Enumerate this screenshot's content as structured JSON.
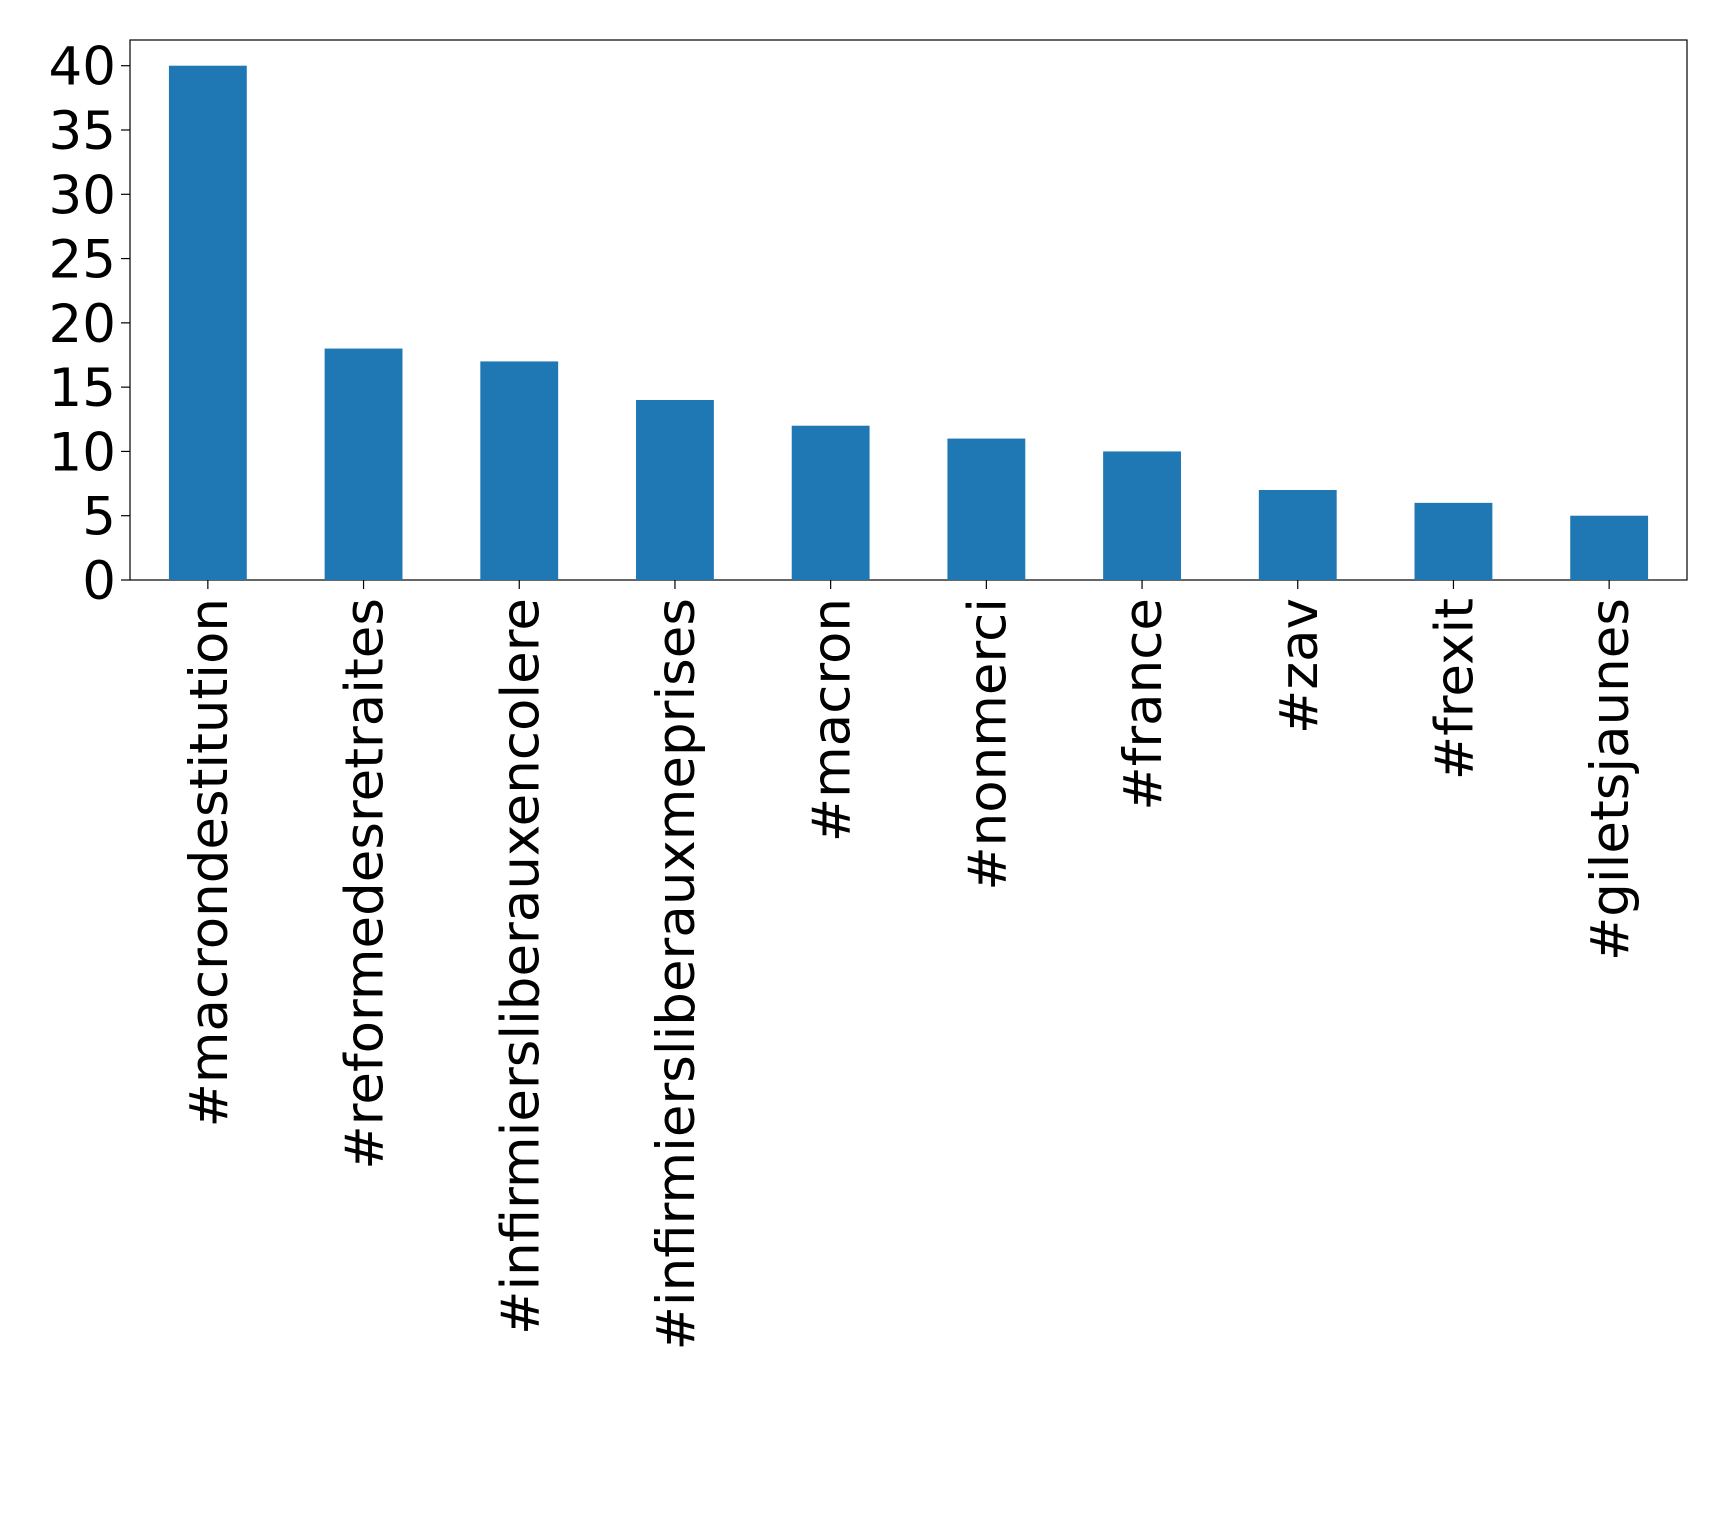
{
  "chart_data": {
    "type": "bar",
    "categories": [
      "#macrondestitution",
      "#reformedesretraites",
      "#infirmiersliberauxencolere",
      "#infirmiersliberauxmeprises",
      "#macron",
      "#nonmerci",
      "#france",
      "#zav",
      "#frexit",
      "#giletsjaunes"
    ],
    "values": [
      40,
      18,
      17,
      14,
      12,
      11,
      10,
      7,
      6,
      5
    ],
    "color": "#1f77b4",
    "ylim": [
      0,
      42
    ],
    "yticks": [
      0,
      5,
      10,
      15,
      20,
      25,
      30,
      35,
      40
    ],
    "grid": false
  }
}
